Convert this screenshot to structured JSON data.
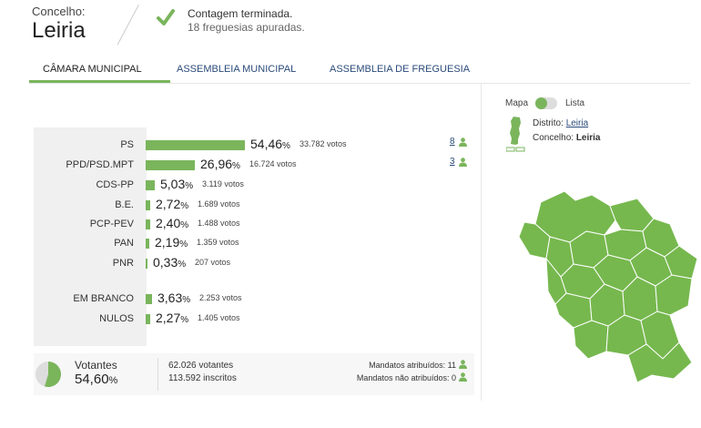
{
  "header": {
    "label": "Concelho:",
    "name": "Leiria",
    "status_title": "Contagem terminada.",
    "status_sub": "18 freguesias apuradas."
  },
  "tabs": [
    {
      "label": "CÂMARA MUNICIPAL",
      "active": true
    },
    {
      "label": "ASSEMBLEIA MUNICIPAL",
      "active": false
    },
    {
      "label": "ASSEMBLEIA DE FREGUESIA",
      "active": false
    }
  ],
  "results": [
    {
      "party": "PS",
      "pct": "54,46",
      "votes": "33.782 votos",
      "mandates": "8",
      "fraction": 0.5446
    },
    {
      "party": "PPD/PSD.MPT",
      "pct": "26,96",
      "votes": "16.724 votos",
      "mandates": "3",
      "fraction": 0.2696
    },
    {
      "party": "CDS-PP",
      "pct": "5,03",
      "votes": "3.119 votos",
      "mandates": "",
      "fraction": 0.0503
    },
    {
      "party": "B.E.",
      "pct": "2,72",
      "votes": "1.689 votos",
      "mandates": "",
      "fraction": 0.0272
    },
    {
      "party": "PCP-PEV",
      "pct": "2,40",
      "votes": "1.488 votos",
      "mandates": "",
      "fraction": 0.024
    },
    {
      "party": "PAN",
      "pct": "2,19",
      "votes": "1.359 votos",
      "mandates": "",
      "fraction": 0.0219
    },
    {
      "party": "PNR",
      "pct": "0,33",
      "votes": "207 votos",
      "mandates": "",
      "fraction": 0.0033
    }
  ],
  "blank_null": [
    {
      "party": "EM BRANCO",
      "pct": "3,63",
      "votes": "2.253 votos",
      "fraction": 0.0363
    },
    {
      "party": "NULOS",
      "pct": "2,27",
      "votes": "1.405 votos",
      "fraction": 0.0227
    }
  ],
  "percent_sign": "%",
  "summary": {
    "votantes_label": "Votantes",
    "votantes_pct": "54,60",
    "votantes_fraction": 0.546,
    "votantes_count": "62.026 votantes",
    "inscritos": "113.592 inscritos",
    "mandatos_atribuidos": "Mandatos atribuídos: 11",
    "mandatos_nao_atribuidos": "Mandatos não atribuídos: 0"
  },
  "sidebar": {
    "mapa_label": "Mapa",
    "lista_label": "Lista",
    "distrito_label": "Distrito:",
    "distrito_value": "Leiria",
    "concelho_label": "Concelho:",
    "concelho_value": "Leiria"
  },
  "colors": {
    "accent": "#7ab55c",
    "link": "#2b4b7a",
    "map_fill": "#76b84e"
  },
  "icons": [
    "check-icon",
    "person-icon",
    "pie-icon",
    "portugal-icon",
    "municipality-map"
  ]
}
